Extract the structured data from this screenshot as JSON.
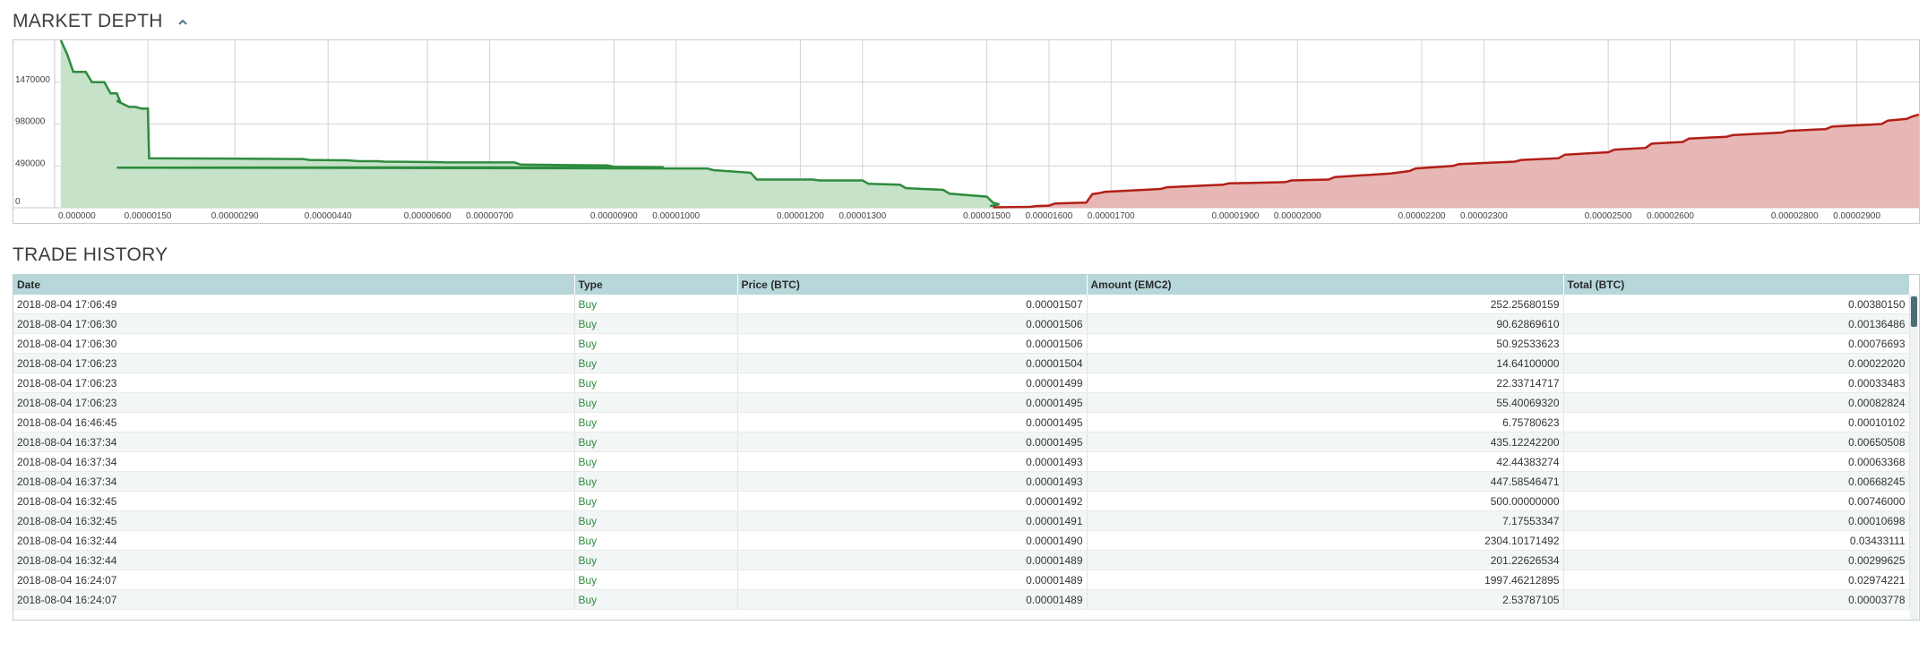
{
  "market_depth": {
    "title": "MARKET DEPTH",
    "toggle_icon": "chevron-up-icon",
    "colors": {
      "bid_line": "#2e8b3e",
      "bid_fill": "#c6e2c9",
      "ask_line": "#b11f17",
      "ask_fill": "#e6b7b4",
      "grid": "#d4d4d4"
    }
  },
  "chart_data": {
    "type": "area",
    "title": "",
    "xlabel": "",
    "ylabel": "",
    "xlim": [
      0.0,
      3e-05
    ],
    "ylim": [
      0,
      1960000
    ],
    "grid": true,
    "y_ticks": [
      "0",
      "490000",
      "980000",
      "1470000"
    ],
    "y_tick_values": [
      0,
      490000,
      980000,
      1470000
    ],
    "x_ticks": [
      "0.000000",
      "0.00000150",
      "0.00000290",
      "0.00000440",
      "0.00000600",
      "0.00000700",
      "0.00000900",
      "0.00001000",
      "0.00001200",
      "0.00001300",
      "0.00001500",
      "0.00001600",
      "0.00001700",
      "0.00001900",
      "0.00002000",
      "0.00002200",
      "0.00002300",
      "0.00002500",
      "0.00002600",
      "0.00002800",
      "0.00002900"
    ],
    "x_tick_values": [
      0.0,
      1.5e-06,
      2.9e-06,
      4.4e-06,
      6e-06,
      7e-06,
      9e-06,
      1e-05,
      1.2e-05,
      1.3e-05,
      1.5e-05,
      1.6e-05,
      1.7e-05,
      1.9e-05,
      2e-05,
      2.2e-05,
      2.3e-05,
      2.5e-05,
      2.6e-05,
      2.8e-05,
      2.9e-05
    ],
    "series": [
      {
        "side": "bid",
        "points": [
          [
            1e-07,
            1960000
          ],
          [
            2e-07,
            1800000
          ],
          [
            3e-07,
            1590000
          ],
          [
            5e-07,
            1590000
          ],
          [
            6e-07,
            1470000
          ],
          [
            8e-07,
            1470000
          ],
          [
            9e-07,
            1340000
          ],
          [
            1e-06,
            1340000
          ],
          [
            1.05e-06,
            1250000
          ],
          [
            1e-06,
            1250000
          ],
          [
            1.2e-06,
            1180000
          ],
          [
            1.3e-06,
            1180000
          ],
          [
            1.4e-06,
            1160000
          ],
          [
            1.5e-06,
            1160000
          ],
          [
            1.52e-06,
            580000
          ],
          [
            4e-06,
            570000
          ],
          [
            4.1e-06,
            560000
          ],
          [
            4.7e-06,
            555000
          ],
          [
            4.9e-06,
            545000
          ],
          [
            5.2e-06,
            545000
          ],
          [
            5.3e-06,
            540000
          ],
          [
            6.1e-06,
            535000
          ],
          [
            6.3e-06,
            530000
          ],
          [
            7.4e-06,
            530000
          ],
          [
            7.5e-06,
            505000
          ],
          [
            8.9e-06,
            495000
          ],
          [
            9e-06,
            480000
          ],
          [
            9.8e-06,
            475000
          ],
          [
            1e-06,
            470000
          ],
          [
            1.05e-05,
            460000
          ],
          [
            1.06e-05,
            440000
          ],
          [
            1.12e-05,
            410000
          ],
          [
            1.13e-05,
            330000
          ],
          [
            1.22e-05,
            330000
          ],
          [
            1.23e-05,
            320000
          ],
          [
            1.3e-05,
            320000
          ],
          [
            1.31e-05,
            280000
          ],
          [
            1.36e-05,
            270000
          ],
          [
            1.37e-05,
            230000
          ],
          [
            1.43e-05,
            210000
          ],
          [
            1.44e-05,
            165000
          ],
          [
            1.5e-05,
            130000
          ],
          [
            1.51e-05,
            60000
          ],
          [
            1.52e-05,
            40000
          ],
          [
            1.505e-05,
            20000
          ]
        ]
      },
      {
        "side": "ask",
        "points": [
          [
            1.51e-05,
            5000
          ],
          [
            1.57e-05,
            10000
          ],
          [
            1.58e-05,
            20000
          ],
          [
            1.6e-05,
            25000
          ],
          [
            1.61e-05,
            50000
          ],
          [
            1.66e-05,
            60000
          ],
          [
            1.67e-05,
            160000
          ],
          [
            1.68e-05,
            170000
          ],
          [
            1.69e-05,
            185000
          ],
          [
            1.78e-05,
            220000
          ],
          [
            1.79e-05,
            240000
          ],
          [
            1.88e-05,
            270000
          ],
          [
            1.89e-05,
            285000
          ],
          [
            1.98e-05,
            300000
          ],
          [
            1.99e-05,
            320000
          ],
          [
            2.05e-05,
            330000
          ],
          [
            2.06e-05,
            360000
          ],
          [
            2.15e-05,
            400000
          ],
          [
            2.16e-05,
            410000
          ],
          [
            2.18e-05,
            430000
          ],
          [
            2.19e-05,
            460000
          ],
          [
            2.25e-05,
            490000
          ],
          [
            2.26e-05,
            510000
          ],
          [
            2.35e-05,
            540000
          ],
          [
            2.36e-05,
            560000
          ],
          [
            2.42e-05,
            580000
          ],
          [
            2.43e-05,
            620000
          ],
          [
            2.5e-05,
            650000
          ],
          [
            2.51e-05,
            680000
          ],
          [
            2.56e-05,
            700000
          ],
          [
            2.57e-05,
            750000
          ],
          [
            2.62e-05,
            770000
          ],
          [
            2.63e-05,
            810000
          ],
          [
            2.69e-05,
            830000
          ],
          [
            2.7e-05,
            850000
          ],
          [
            2.78e-05,
            880000
          ],
          [
            2.79e-05,
            900000
          ],
          [
            2.85e-05,
            920000
          ],
          [
            2.86e-05,
            950000
          ],
          [
            2.94e-05,
            980000
          ],
          [
            2.95e-05,
            1020000
          ],
          [
            2.98e-05,
            1040000
          ],
          [
            2.99e-05,
            1070000
          ],
          [
            3e-05,
            1090000
          ]
        ]
      }
    ]
  },
  "trade_history": {
    "title": "TRADE HISTORY",
    "columns": [
      "Date",
      "Type",
      "Price (BTC)",
      "Amount (EMC2)",
      "Total (BTC)"
    ],
    "rows": [
      [
        "2018-08-04 17:06:49",
        "Buy",
        "0.00001507",
        "252.25680159",
        "0.00380150"
      ],
      [
        "2018-08-04 17:06:30",
        "Buy",
        "0.00001506",
        "90.62869610",
        "0.00136486"
      ],
      [
        "2018-08-04 17:06:30",
        "Buy",
        "0.00001506",
        "50.92533623",
        "0.00076693"
      ],
      [
        "2018-08-04 17:06:23",
        "Buy",
        "0.00001504",
        "14.64100000",
        "0.00022020"
      ],
      [
        "2018-08-04 17:06:23",
        "Buy",
        "0.00001499",
        "22.33714717",
        "0.00033483"
      ],
      [
        "2018-08-04 17:06:23",
        "Buy",
        "0.00001495",
        "55.40069320",
        "0.00082824"
      ],
      [
        "2018-08-04 16:46:45",
        "Buy",
        "0.00001495",
        "6.75780623",
        "0.00010102"
      ],
      [
        "2018-08-04 16:37:34",
        "Buy",
        "0.00001495",
        "435.12242200",
        "0.00650508"
      ],
      [
        "2018-08-04 16:37:34",
        "Buy",
        "0.00001493",
        "42.44383274",
        "0.00063368"
      ],
      [
        "2018-08-04 16:37:34",
        "Buy",
        "0.00001493",
        "447.58546471",
        "0.00668245"
      ],
      [
        "2018-08-04 16:32:45",
        "Buy",
        "0.00001492",
        "500.00000000",
        "0.00746000"
      ],
      [
        "2018-08-04 16:32:45",
        "Buy",
        "0.00001491",
        "7.17553347",
        "0.00010698"
      ],
      [
        "2018-08-04 16:32:44",
        "Buy",
        "0.00001490",
        "2304.10171492",
        "0.03433111"
      ],
      [
        "2018-08-04 16:32:44",
        "Buy",
        "0.00001489",
        "201.22626534",
        "0.00299625"
      ],
      [
        "2018-08-04 16:24:07",
        "Buy",
        "0.00001489",
        "1997.46212895",
        "0.02974221"
      ],
      [
        "2018-08-04 16:24:07",
        "Buy",
        "0.00001489",
        "2.53787105",
        "0.00003778"
      ]
    ]
  }
}
